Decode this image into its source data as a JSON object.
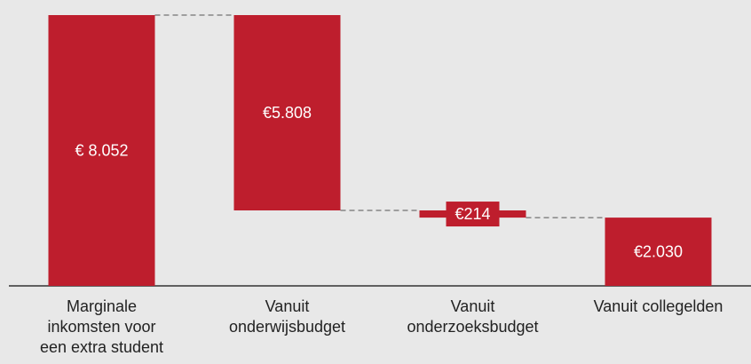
{
  "chart_data": {
    "type": "waterfall",
    "categories": [
      "Marginale inkomsten voor een extra student",
      "Vanuit onderwijsbudget",
      "Vanuit onderzoeksbudget",
      "Vanuit collegelden"
    ],
    "values": [
      8052,
      5808,
      214,
      2030
    ],
    "value_labels": [
      "€ 8.052",
      "€5.808",
      "€214",
      "€2.030"
    ],
    "color": "#be1e2d"
  }
}
